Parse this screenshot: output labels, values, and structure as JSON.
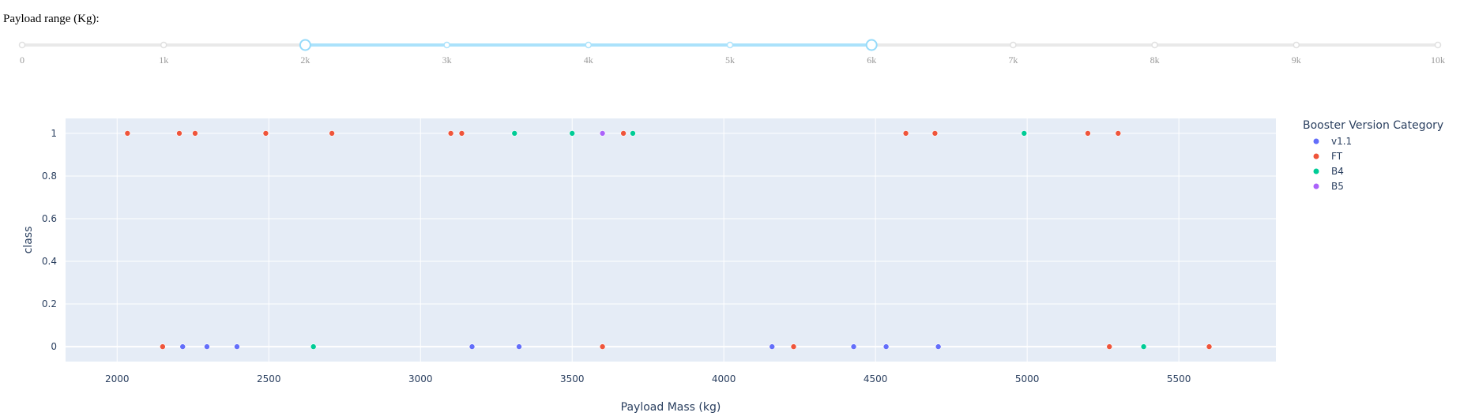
{
  "slider": {
    "label": "Payload range (Kg):",
    "min": 0,
    "max": 10000,
    "value": [
      2000,
      6000
    ],
    "tick_labels": [
      "0",
      "1k",
      "2k",
      "3k",
      "4k",
      "5k",
      "6k",
      "7k",
      "8k",
      "9k",
      "10k"
    ],
    "rail_color": "#e9e9e9",
    "track_color": "#abe2fb",
    "handle_color": "#96dbfa"
  },
  "chart_data": {
    "type": "scatter",
    "xlabel": "Payload Mass (kg)",
    "ylabel": "class",
    "xlim": [
      1830,
      5820
    ],
    "ylim": [
      -0.07,
      1.07
    ],
    "x_ticks": [
      2000,
      2500,
      3000,
      3500,
      4000,
      4500,
      5000,
      5500
    ],
    "y_ticks": [
      0,
      0.2,
      0.4,
      0.6,
      0.8,
      1
    ],
    "y_tick_labels": [
      "0",
      "0.2",
      "0.4",
      "0.6",
      "0.8",
      "1"
    ],
    "grid": true,
    "legend_title": "Booster Version Category",
    "legend_position": "right",
    "series": [
      {
        "name": "v1.1",
        "color": "#636efa",
        "x": [
          2216,
          2296,
          2395,
          3170,
          3325,
          4159,
          4428,
          4535,
          4707
        ],
        "y": [
          0,
          0,
          0,
          0,
          0,
          0,
          0,
          0,
          0
        ]
      },
      {
        "name": "FT",
        "color": "#ef553b",
        "x": [
          2034,
          2205,
          2257,
          2490,
          2708,
          3100,
          3136,
          3669,
          4600,
          4696,
          5200,
          5300,
          2150,
          3600,
          4230,
          5271,
          5600
        ],
        "y": [
          1,
          1,
          1,
          1,
          1,
          1,
          1,
          1,
          1,
          1,
          1,
          1,
          0,
          0,
          0,
          0,
          0
        ]
      },
      {
        "name": "B4",
        "color": "#00cc96",
        "x": [
          3310,
          3500,
          3700,
          4990,
          2647,
          5384
        ],
        "y": [
          1,
          1,
          1,
          1,
          0,
          0
        ]
      },
      {
        "name": "B5",
        "color": "#ab63fa",
        "x": [
          3600
        ],
        "y": [
          1
        ]
      }
    ]
  }
}
